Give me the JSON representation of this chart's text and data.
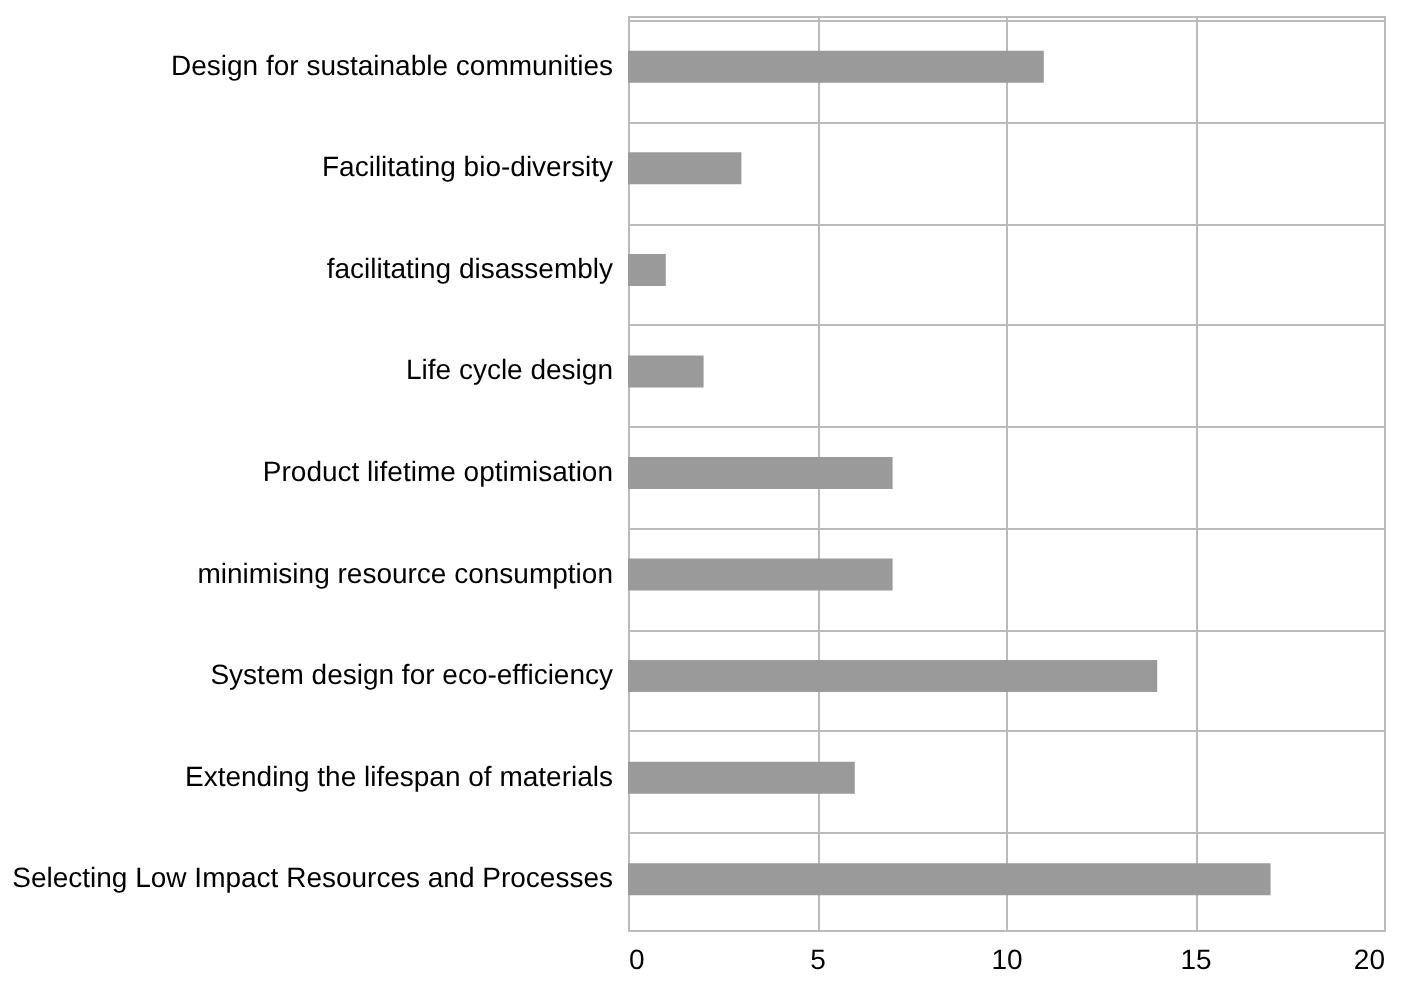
{
  "chart_data": {
    "type": "bar",
    "orientation": "horizontal",
    "categories": [
      "Design for sustainable communities",
      "Facilitating bio-diversity",
      "facilitating disassembly",
      "Life cycle design",
      "Product lifetime optimisation",
      "minimising resource consumption",
      "System design for eco-efficiency",
      "Extending the lifespan of materials",
      "Selecting Low Impact Resources and Processes"
    ],
    "values": [
      11,
      3,
      1,
      2,
      7,
      7,
      14,
      6,
      17
    ],
    "color": "#9a9a9a",
    "xlim": [
      0,
      20
    ],
    "xticks": [
      0,
      5,
      10,
      15,
      20
    ],
    "grid": true
  }
}
